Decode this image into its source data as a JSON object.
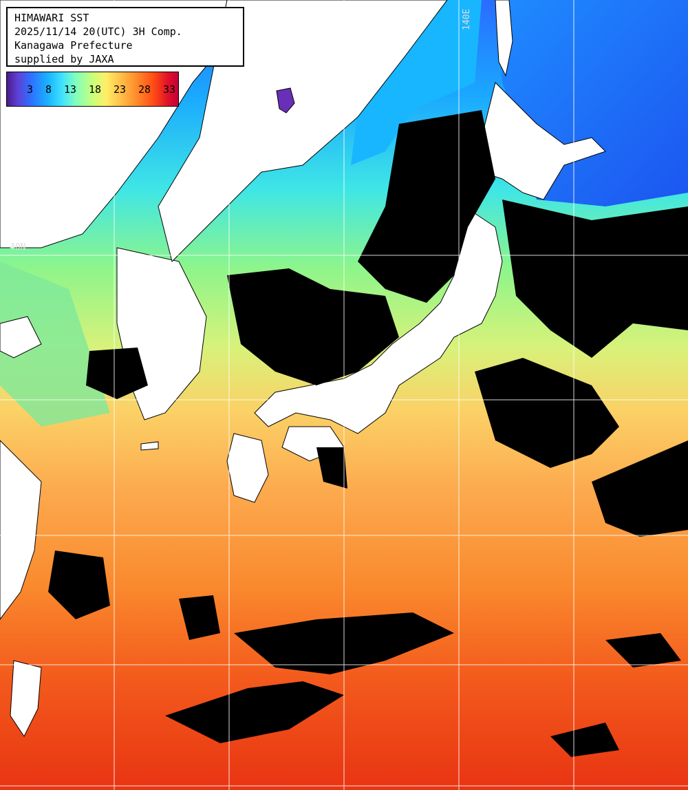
{
  "title": {
    "line1": "HIMAWARI SST",
    "line2": "2025/11/14 20(UTC) 3H Comp.",
    "line3": "Kanagawa Prefecture",
    "line4": "supplied by JAXA"
  },
  "colorbar": {
    "labels": [
      "3",
      "8",
      "13",
      "18",
      "23",
      "28",
      "33"
    ]
  },
  "grid": {
    "lon_label": "140E",
    "lat_label": "40N"
  },
  "colors": {
    "land": "#ffffff",
    "cloud": "#000000",
    "grid": "#ffffff"
  }
}
